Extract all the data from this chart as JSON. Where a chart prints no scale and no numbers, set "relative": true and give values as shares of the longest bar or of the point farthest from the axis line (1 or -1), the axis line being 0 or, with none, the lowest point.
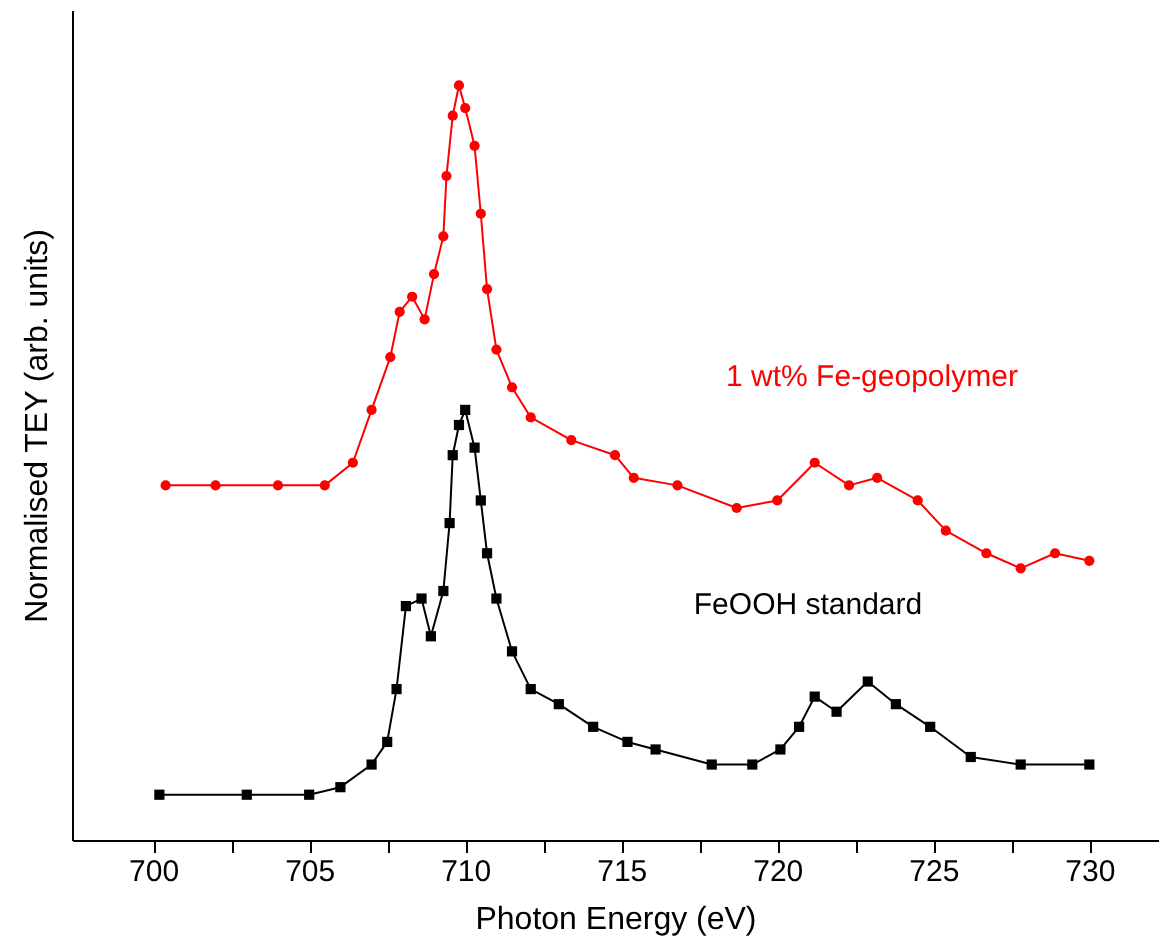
{
  "chart_data": {
    "type": "line",
    "relative": true,
    "xlabel": "Photon Energy (eV)",
    "ylabel": "Normalised TEY (arb. units)",
    "xlim": [
      697.4,
      732.2
    ],
    "xticks": [
      700,
      {
        "value": 702.5,
        "label": null
      },
      705,
      {
        "value": 707.5,
        "label": null
      },
      710,
      {
        "value": 712.5,
        "label": null
      },
      715,
      {
        "value": 717.5,
        "label": null
      },
      720,
      {
        "value": 722.5,
        "label": null
      },
      725,
      {
        "value": 727.5,
        "label": null
      },
      730
    ],
    "tick_labels": "x",
    "grid": false,
    "series": [
      {
        "name": "1 wt% Fe-geopolymer",
        "color": "#ff0000",
        "marker": "circle",
        "x": [
          700.4,
          702,
          704,
          705.5,
          706.4,
          707,
          707.6,
          707.9,
          708.3,
          708.7,
          709,
          709.3,
          709.4,
          709.6,
          709.8,
          710,
          710.3,
          710.5,
          710.7,
          711,
          711.5,
          712.1,
          713.4,
          714.8,
          715.4,
          716.8,
          718.7,
          720,
          721.2,
          722.3,
          723.2,
          724.5,
          725.4,
          726.7,
          727.8,
          728.9,
          730
        ],
        "values": [
          0.47,
          0.47,
          0.47,
          0.47,
          0.5,
          0.57,
          0.64,
          0.7,
          0.72,
          0.69,
          0.75,
          0.8,
          0.88,
          0.96,
          1.0,
          0.97,
          0.92,
          0.83,
          0.73,
          0.65,
          0.6,
          0.56,
          0.53,
          0.51,
          0.48,
          0.47,
          0.44,
          0.45,
          0.5,
          0.47,
          0.48,
          0.45,
          0.41,
          0.38,
          0.36,
          0.38,
          0.37
        ]
      },
      {
        "name": "FeOOH standard",
        "color": "#000000",
        "marker": "square",
        "x": [
          700.2,
          703,
          705,
          706,
          707,
          707.5,
          707.8,
          708.1,
          708.6,
          708.9,
          709.3,
          709.5,
          709.6,
          709.8,
          710,
          710.3,
          710.5,
          710.7,
          711,
          711.5,
          712.1,
          713,
          714.1,
          715.2,
          716.1,
          717.9,
          719.2,
          720.1,
          720.7,
          721.2,
          721.9,
          722.9,
          723.8,
          724.9,
          726.2,
          727.8,
          730
        ],
        "values": [
          0.06,
          0.06,
          0.06,
          0.07,
          0.1,
          0.13,
          0.2,
          0.31,
          0.32,
          0.27,
          0.33,
          0.42,
          0.51,
          0.55,
          0.57,
          0.52,
          0.45,
          0.38,
          0.32,
          0.25,
          0.2,
          0.18,
          0.15,
          0.13,
          0.12,
          0.1,
          0.1,
          0.12,
          0.15,
          0.19,
          0.17,
          0.21,
          0.18,
          0.15,
          0.11,
          0.1,
          0.1
        ]
      }
    ]
  }
}
